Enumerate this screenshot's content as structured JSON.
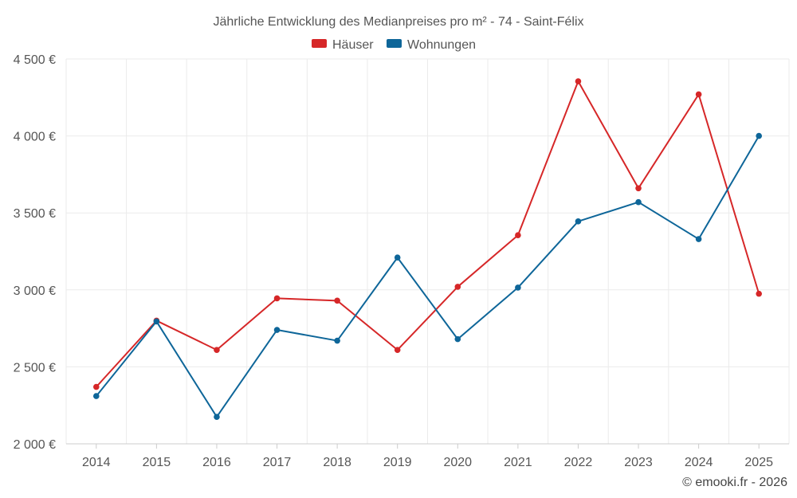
{
  "chart_data": {
    "type": "line",
    "title": "Jährliche Entwicklung des Medianpreises pro m² - 74 - Saint-Félix",
    "categories": [
      "2014",
      "2015",
      "2016",
      "2017",
      "2018",
      "2019",
      "2020",
      "2021",
      "2022",
      "2023",
      "2024",
      "2025"
    ],
    "series": [
      {
        "name": "Häuser",
        "color": "#d62728",
        "values": [
          2370,
          2800,
          2610,
          2945,
          2930,
          2610,
          3020,
          3355,
          4355,
          3660,
          4270,
          2975
        ]
      },
      {
        "name": "Wohnungen",
        "color": "#0e6699",
        "values": [
          2310,
          2795,
          2175,
          2740,
          2670,
          3210,
          2680,
          3015,
          3445,
          3570,
          3330,
          4000
        ]
      }
    ],
    "ylim": [
      2000,
      4500
    ],
    "yticks": [
      2000,
      2500,
      3000,
      3500,
      4000,
      4500
    ],
    "ytick_labels": [
      "2 000 €",
      "2 500 €",
      "3 000 €",
      "3 500 €",
      "4 000 €",
      "4 500 €"
    ],
    "xlabel": "",
    "ylabel": "",
    "legend_position": "top-center",
    "grid": true
  },
  "footer": {
    "credit": "© emooki.fr - 2026"
  }
}
